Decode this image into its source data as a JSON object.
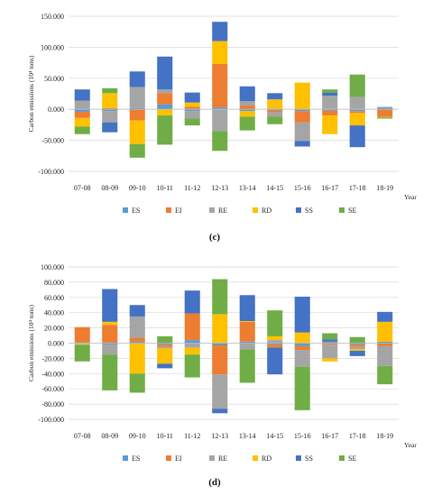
{
  "colors": {
    "ES": "#5b9bd5",
    "EI": "#ed7d31",
    "RE": "#a5a5a5",
    "RD": "#ffc000",
    "SS": "#4472c4",
    "SE": "#70ad47"
  },
  "chart_data": [
    {
      "type": "bar",
      "stacked": true,
      "panel_label": "(c)",
      "ylabel": "Carbon emissions  (10⁴ tons)",
      "xlabel": "Year",
      "ylim": [
        -100000,
        150000
      ],
      "yticks": [
        -100000,
        -50000,
        0,
        50000,
        100000,
        150000
      ],
      "ytick_labels": [
        "-100.000",
        "-50.000",
        "0.000",
        "50.000",
        "100.000",
        "150.000"
      ],
      "grid": true,
      "legend": "bottom",
      "categories": [
        "07-08",
        "08-09",
        "09-10",
        "10-11",
        "11-12",
        "12-13",
        "13-14",
        "14-15",
        "15-16",
        "16-17",
        "17-18",
        "18-19"
      ],
      "series": [
        {
          "name": "ES",
          "values": [
            -4000,
            -3000,
            2000,
            8000,
            -3000,
            3000,
            -3000,
            -2000,
            -3000,
            -2000,
            -3000,
            3000
          ]
        },
        {
          "name": "EI",
          "values": [
            -10000,
            2000,
            -18000,
            18000,
            4000,
            70000,
            6000,
            -3000,
            -18000,
            -8000,
            -3000,
            -12000
          ]
        },
        {
          "name": "RE",
          "values": [
            14000,
            -18000,
            34000,
            6000,
            -12000,
            -35000,
            7000,
            -7000,
            -30000,
            22000,
            20000,
            1000
          ]
        },
        {
          "name": "RD",
          "values": [
            -14000,
            24000,
            -38000,
            -10000,
            7000,
            37000,
            -9000,
            16000,
            43000,
            -30000,
            -20000,
            -1000
          ]
        },
        {
          "name": "SS",
          "values": [
            18000,
            -16000,
            25000,
            53000,
            16000,
            31000,
            24000,
            10000,
            -9000,
            5000,
            -35000,
            0
          ]
        },
        {
          "name": "SE",
          "values": [
            -12000,
            8000,
            -22000,
            -47000,
            -11000,
            -32000,
            -22000,
            -12000,
            0,
            5000,
            36000,
            -2000
          ]
        }
      ]
    },
    {
      "type": "bar",
      "stacked": true,
      "panel_label": "(d)",
      "ylabel": "Carbon emissions  (10⁴ tons)",
      "xlabel": "Year",
      "ylim": [
        -100000,
        100000
      ],
      "yticks": [
        -100000,
        -80000,
        -60000,
        -40000,
        -20000,
        0,
        20000,
        40000,
        60000,
        80000,
        100000
      ],
      "ytick_labels": [
        "-100.000",
        "-80.000",
        "-60.000",
        "-40.000",
        "-20.000",
        "0.000",
        "20.000",
        "40.000",
        "60.000",
        "80.000",
        "100.000"
      ],
      "grid": true,
      "legend": "bottom",
      "categories": [
        "07-08",
        "08-09",
        "09-10",
        "10-11",
        "11-12",
        "12-13",
        "13-14",
        "14-15",
        "15-16",
        "16-17",
        "17-18",
        "18-19"
      ],
      "series": [
        {
          "name": "ES",
          "values": [
            1000,
            -2000,
            2000,
            -2000,
            4000,
            -3000,
            2000,
            -2000,
            -4000,
            2000,
            -2000,
            2000
          ]
        },
        {
          "name": "EI",
          "values": [
            20000,
            24000,
            5000,
            -3000,
            35000,
            -38000,
            26000,
            -4000,
            -5000,
            -2000,
            -3000,
            -4000
          ]
        },
        {
          "name": "RE",
          "values": [
            -1000,
            -13000,
            28000,
            -2000,
            -6000,
            -45000,
            -8000,
            4000,
            -22000,
            -18000,
            -3000,
            -26000
          ]
        },
        {
          "name": "RD",
          "values": [
            -1000,
            4000,
            -40000,
            -20000,
            -9000,
            38000,
            1000,
            5000,
            14000,
            -4000,
            -2000,
            26000
          ]
        },
        {
          "name": "SS",
          "values": [
            0,
            43000,
            15000,
            -6000,
            30000,
            -6000,
            34000,
            -35000,
            47000,
            3000,
            -7000,
            13000
          ]
        },
        {
          "name": "SE",
          "values": [
            -22000,
            -47000,
            -25000,
            9000,
            -30000,
            46000,
            -44000,
            34000,
            -57000,
            8000,
            8000,
            -24000
          ]
        }
      ]
    }
  ]
}
